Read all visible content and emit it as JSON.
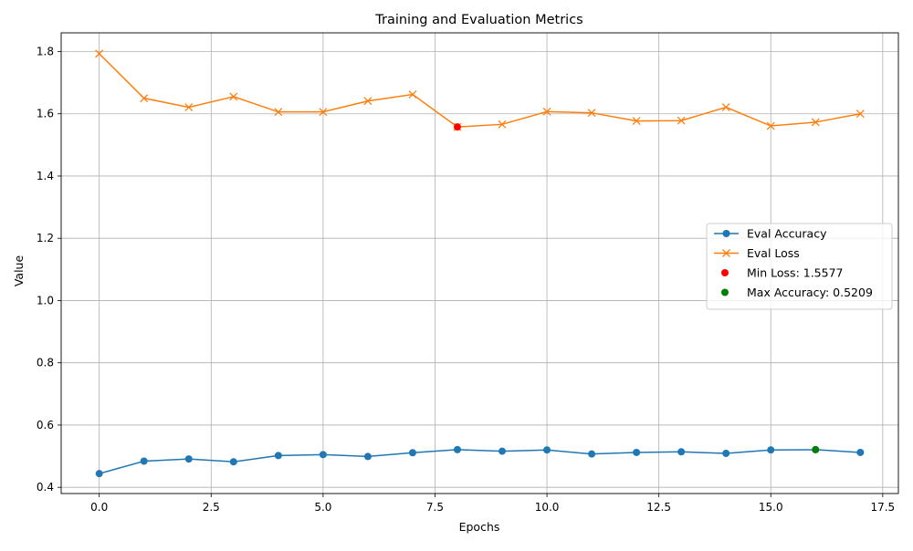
{
  "chart_data": {
    "type": "line",
    "title": "Training and Evaluation Metrics",
    "xlabel": "Epochs",
    "ylabel": "Value",
    "xlim": [
      -0.85,
      17.85
    ],
    "ylim": [
      0.38,
      1.86
    ],
    "x_ticks": [
      0.0,
      2.5,
      5.0,
      7.5,
      10.0,
      12.5,
      15.0,
      17.5
    ],
    "x_tick_labels": [
      "0.0",
      "2.5",
      "5.0",
      "7.5",
      "10.0",
      "12.5",
      "15.0",
      "17.5"
    ],
    "y_ticks": [
      0.4,
      0.6,
      0.8,
      1.0,
      1.2,
      1.4,
      1.6,
      1.8
    ],
    "y_tick_labels": [
      "0.4",
      "0.6",
      "0.8",
      "1.0",
      "1.2",
      "1.4",
      "1.6",
      "1.8"
    ],
    "grid": true,
    "legend_position": "center-right",
    "x": [
      0,
      1,
      2,
      3,
      4,
      5,
      6,
      7,
      8,
      9,
      10,
      11,
      12,
      13,
      14,
      15,
      16,
      17
    ],
    "series": [
      {
        "name": "Eval Accuracy",
        "marker": "circle",
        "color": "#1f77b4",
        "values": [
          0.444,
          0.484,
          0.491,
          0.482,
          0.502,
          0.505,
          0.499,
          0.511,
          0.521,
          0.516,
          0.52,
          0.507,
          0.512,
          0.514,
          0.509,
          0.52,
          0.5209,
          0.512
        ]
      },
      {
        "name": "Eval Loss",
        "marker": "x",
        "color": "#ff7f0e",
        "values": [
          1.793,
          1.65,
          1.621,
          1.655,
          1.606,
          1.606,
          1.641,
          1.662,
          1.5577,
          1.566,
          1.607,
          1.603,
          1.577,
          1.578,
          1.621,
          1.561,
          1.573,
          1.6
        ]
      }
    ],
    "highlights": [
      {
        "name": "Min Loss: 1.5577",
        "x": 8,
        "y": 1.5577,
        "color": "#ff0000"
      },
      {
        "name": "Max Accuracy: 0.5209",
        "x": 16,
        "y": 0.5209,
        "color": "#008000"
      }
    ]
  }
}
